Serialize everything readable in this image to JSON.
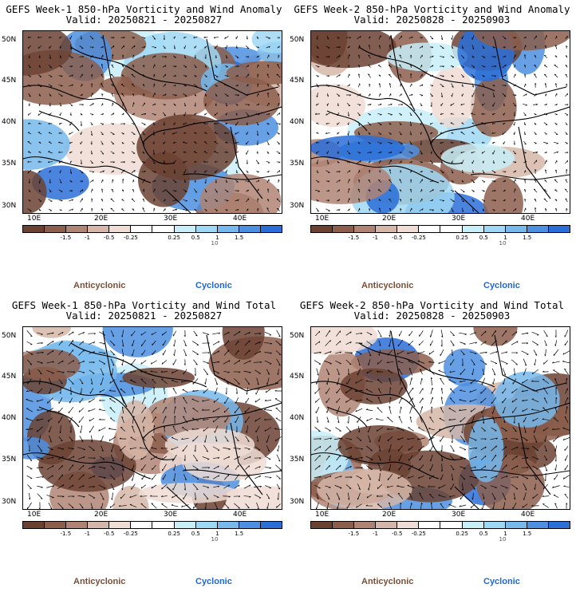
{
  "colors": {
    "anticyclonic": "#7a4f3a",
    "cyclonic": "#1f66d6",
    "scale": [
      "#6b4232",
      "#8c5e4c",
      "#b08474",
      "#d6b6a8",
      "#efdcd4",
      "#ffffff",
      "#ffffff",
      "#c8eef8",
      "#9fd8f5",
      "#77b9ec",
      "#4d8fe0",
      "#2a6ed8"
    ]
  },
  "colorbar": {
    "ticks": [
      "-1.5",
      "-1",
      "-0.5",
      "-0.25",
      "0.25",
      "0.5",
      "1",
      "1.5"
    ],
    "vector_label": "10"
  },
  "legend": {
    "anticyclonic": "Anticyclonic",
    "cyclonic": "Cyclonic"
  },
  "axes": {
    "lat_labels": [
      "50N",
      "45N",
      "40N",
      "35N",
      "30N"
    ],
    "lon_labels": [
      "10E",
      "20E",
      "30E",
      "40E"
    ]
  },
  "panels": [
    {
      "title": "GEFS Week-1 850-hPa Vorticity and Wind Anomaly",
      "valid": "Valid: 20250821 - 20250827",
      "field": "anomaly"
    },
    {
      "title": "GEFS Week-2 850-hPa Vorticity and Wind Anomaly",
      "valid": "Valid: 20250828 - 20250903",
      "field": "anomaly"
    },
    {
      "title": "GEFS Week-1 850-hPa Vorticity and Wind Total",
      "valid": "Valid: 20250821 - 20250827",
      "field": "total"
    },
    {
      "title": "GEFS Week-2 850-hPa Vorticity and Wind Total",
      "valid": "Valid: 20250828 - 20250903",
      "field": "total"
    }
  ]
}
